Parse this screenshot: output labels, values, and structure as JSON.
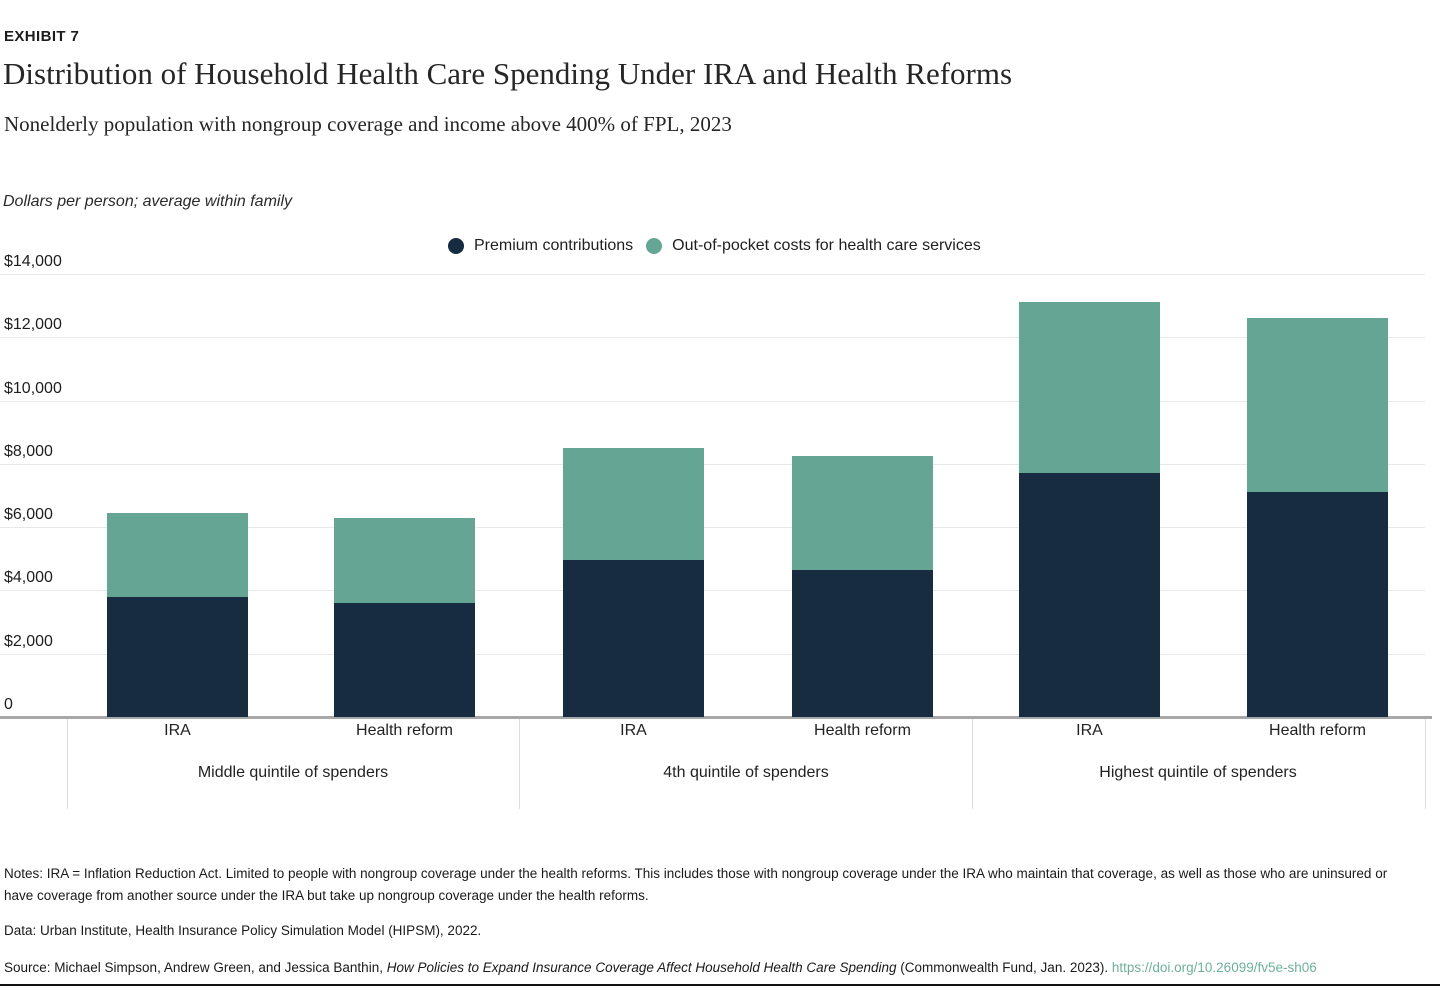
{
  "header": {
    "exhibit": "EXHIBIT 7",
    "title": "Distribution of Household Health Care Spending Under IRA and Health Reforms",
    "subtitle": "Nonelderly population with nongroup coverage and income above 400% of FPL, 2023",
    "units_note": "Dollars per person; average within family"
  },
  "colors": {
    "premium_navy": "#172b41",
    "oop_green": "#64a593",
    "link_green": "#6fb09a",
    "gridline": "#e9e9e9",
    "axis_line": "#a8a8a8",
    "separator": "#dcdcdc"
  },
  "chart_data": {
    "type": "bar",
    "stacked": true,
    "title": "Distribution of Household Health Care Spending Under IRA and Health Reforms",
    "subtitle": "Nonelderly population with nongroup coverage and income above 400% of FPL, 2023",
    "units": "Dollars per person; average within family",
    "ylim": [
      0,
      14000
    ],
    "ytick_step": 2000,
    "ytick_labels_top_down": [
      "$14,000",
      "$12,000",
      "$10,000",
      "$8,000",
      "$6,000",
      "$4,000",
      "$2,000",
      "0"
    ],
    "grid": true,
    "legend_position": "top-center",
    "groups": [
      "Middle quintile of spenders",
      "4th quintile of spenders",
      "Highest quintile of spenders"
    ],
    "bar_labels": [
      "IRA",
      "Health reform",
      "IRA",
      "Health reform",
      "IRA",
      "Health reform"
    ],
    "series": [
      {
        "name": "Premium contributions",
        "color": "#172b41",
        "values": [
          3800,
          3600,
          4950,
          4650,
          7700,
          7100
        ]
      },
      {
        "name": "Out-of-pocket costs for health care services",
        "color": "#64a593",
        "values": [
          2650,
          2700,
          3550,
          3600,
          5400,
          5500
        ]
      }
    ],
    "stack_totals": [
      6450,
      6300,
      8500,
      8250,
      13100,
      12600
    ]
  },
  "footer": {
    "notes": "Notes: IRA = Inflation Reduction Act. Limited to people with nongroup coverage under the health reforms. This includes those with nongroup coverage under the IRA who maintain that coverage, as well as those who are uninsured or have coverage from another source under the IRA but take up nongroup coverage under the health reforms.",
    "data_line": "Data: Urban Institute, Health Insurance Policy Simulation Model (HIPSM), 2022.",
    "source_prefix": "Source: Michael Simpson, Andrew Green, and Jessica Banthin, ",
    "source_title_italic": "How Policies to Expand Insurance Coverage Affect Household Health Care Spending",
    "source_suffix": " (Commonwealth Fund, Jan. 2023). ",
    "source_link": "https://doi.org/10.26099/fv5e-sh06"
  }
}
